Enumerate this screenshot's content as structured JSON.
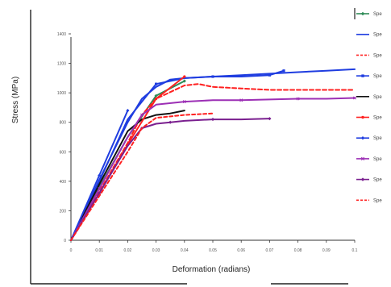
{
  "chart_data": {
    "type": "line",
    "title": "",
    "xlabel": "Deformation (radians)",
    "ylabel": "Stress (MPa)",
    "xlim": [
      0,
      0.1
    ],
    "ylim": [
      0,
      1400
    ],
    "xticks": [
      "0",
      "0.01",
      "0.02",
      "0.03",
      "0.04",
      "0.05",
      "0.06",
      "0.07",
      "0.08",
      "0.09",
      "0.1"
    ],
    "yticks": [
      "0",
      "200",
      "400",
      "600",
      "800",
      "1000",
      "1200",
      "1400"
    ],
    "legend_position": "right",
    "grid": false,
    "series": [
      {
        "name": "Spe",
        "color": "#2e8b57",
        "dash": "",
        "marker": "diamond",
        "x": [
          0,
          0.01,
          0.02,
          0.03,
          0.04
        ],
        "y": [
          0,
          360,
          700,
          980,
          1080
        ]
      },
      {
        "name": "Spe",
        "color": "#1f3de0",
        "dash": "",
        "marker": "",
        "x": [
          0,
          0.01,
          0.02,
          0.025,
          0.03,
          0.035,
          0.04,
          0.05,
          0.06,
          0.07,
          0.08,
          0.09,
          0.1
        ],
        "y": [
          0,
          410,
          800,
          960,
          1040,
          1090,
          1100,
          1110,
          1120,
          1130,
          1140,
          1150,
          1160
        ]
      },
      {
        "name": "Spe",
        "color": "#ff2020",
        "dash": "5,3",
        "marker": "",
        "x": [
          0,
          0.01,
          0.02,
          0.025,
          0.03,
          0.04,
          0.045,
          0.05,
          0.06,
          0.07,
          0.08,
          0.1
        ],
        "y": [
          0,
          330,
          660,
          850,
          960,
          1050,
          1060,
          1040,
          1030,
          1020,
          1020,
          1020
        ]
      },
      {
        "name": "Spe",
        "color": "#1f3de0",
        "dash": "",
        "marker": "square",
        "x": [
          0,
          0.01,
          0.02,
          0.03,
          0.04,
          0.05,
          0.06,
          0.07,
          0.075
        ],
        "y": [
          0,
          400,
          820,
          1060,
          1100,
          1110,
          1110,
          1120,
          1150
        ]
      },
      {
        "name": "Spe",
        "color": "#111111",
        "dash": "",
        "marker": "",
        "x": [
          0,
          0.01,
          0.02,
          0.025,
          0.03,
          0.035,
          0.04
        ],
        "y": [
          0,
          380,
          740,
          820,
          850,
          860,
          880
        ]
      },
      {
        "name": "Spe",
        "color": "#ff2020",
        "dash": "",
        "marker": "circle",
        "x": [
          0,
          0.01,
          0.02,
          0.03,
          0.04
        ],
        "y": [
          0,
          320,
          650,
          960,
          1110
        ]
      },
      {
        "name": "Spe",
        "color": "#1f3de0",
        "dash": "",
        "marker": "diamond",
        "x": [
          0,
          0.01,
          0.02
        ],
        "y": [
          0,
          440,
          880
        ]
      },
      {
        "name": "Spe",
        "color": "#9c2fb5",
        "dash": "",
        "marker": "x",
        "x": [
          0,
          0.01,
          0.02,
          0.025,
          0.03,
          0.04,
          0.05,
          0.06,
          0.07,
          0.08,
          0.09,
          0.1
        ],
        "y": [
          0,
          350,
          700,
          850,
          920,
          940,
          950,
          950,
          955,
          960,
          960,
          965
        ]
      },
      {
        "name": "Spe",
        "color": "#7a1f8f",
        "dash": "",
        "marker": "diamond",
        "x": [
          0,
          0.01,
          0.02,
          0.025,
          0.03,
          0.035,
          0.04,
          0.05,
          0.06,
          0.07
        ],
        "y": [
          0,
          320,
          640,
          760,
          790,
          800,
          810,
          820,
          820,
          825
        ]
      },
      {
        "name": "Spe",
        "color": "#ff2020",
        "dash": "4,3",
        "marker": "",
        "x": [
          0,
          0.01,
          0.02,
          0.025,
          0.03,
          0.04,
          0.05
        ],
        "y": [
          0,
          300,
          600,
          760,
          830,
          850,
          860
        ]
      }
    ]
  }
}
